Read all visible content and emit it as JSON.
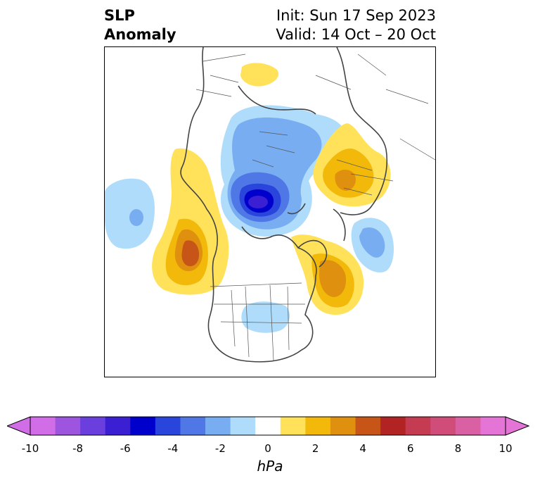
{
  "header": {
    "title_line1": "SLP",
    "title_line2": "Anomaly",
    "init": "Init: Sun 17 Sep 2023",
    "valid": "Valid: 14 Oct – 20 Oct"
  },
  "map": {
    "projection": "north-polar-stereographic",
    "field": "SLP Anomaly",
    "features": [
      {
        "name": "deep-low-arctic-siberia",
        "sign": "negative",
        "peak_hpa": -7
      },
      {
        "name": "high-europe-russia",
        "sign": "positive",
        "peak_hpa": 3
      },
      {
        "name": "high-north-atlantic",
        "sign": "positive",
        "peak_hpa": 4
      },
      {
        "name": "high-gulf-of-alaska",
        "sign": "positive",
        "peak_hpa": 5
      },
      {
        "name": "low-north-pacific",
        "sign": "negative",
        "peak_hpa": -3
      },
      {
        "name": "low-north-atlantic-east",
        "sign": "negative",
        "peak_hpa": -3
      },
      {
        "name": "low-central-us",
        "sign": "negative",
        "peak_hpa": -1
      },
      {
        "name": "high-south-asia",
        "sign": "positive",
        "peak_hpa": 1
      }
    ]
  },
  "colorbar": {
    "unit": "hPa",
    "min": -10,
    "max": 10,
    "tick_labels": [
      "-10",
      "-8",
      "-6",
      "-4",
      "-2",
      "0",
      "2",
      "4",
      "6",
      "8",
      "10"
    ],
    "colors": [
      "#d16de6",
      "#9d55e0",
      "#6a3fde",
      "#3a1fd3",
      "#0000cc",
      "#2a45dc",
      "#4f78e6",
      "#78adf2",
      "#aedcfa",
      "#ffffff",
      "#ffe25a",
      "#f2b90a",
      "#e0900f",
      "#c85518",
      "#b22323",
      "#c43b52",
      "#cf4d78",
      "#d960a2",
      "#e475d6"
    ],
    "extend_min_color": "#d16de6",
    "extend_max_color": "#e475d6"
  }
}
